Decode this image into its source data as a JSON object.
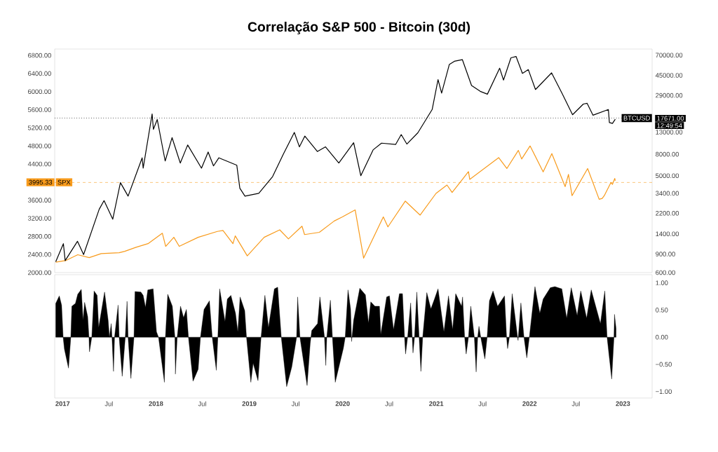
{
  "chart_data": [
    {
      "type": "line",
      "title": "Correlação S&P 500 - Bitcoin (30d)",
      "xlim": [
        "2016-12-01",
        "2023-04-25"
      ],
      "tick_labels": "y",
      "log": "y2",
      "ylim": [
        2000,
        6940
      ],
      "yticks": [
        {
          "value": 2000,
          "label": "2000.00"
        },
        {
          "value": 2400,
          "label": "2400.00"
        },
        {
          "value": 2800,
          "label": "2800.00"
        },
        {
          "value": 3200,
          "label": "3200.00"
        },
        {
          "value": 3600,
          "label": "3600.00"
        },
        {
          "value": 4400,
          "label": "4400.00"
        },
        {
          "value": 4800,
          "label": "4800.00"
        },
        {
          "value": 5200,
          "label": "5200.00"
        },
        {
          "value": 5600,
          "label": "5600.00"
        },
        {
          "value": 6000,
          "label": "6000.00"
        },
        {
          "value": 6400,
          "label": "6400.00"
        },
        {
          "value": 6800,
          "label": "6800.00"
        }
      ],
      "y2lim": [
        600,
        80000
      ],
      "y2ticks": [
        {
          "value": 600,
          "label": "600.00"
        },
        {
          "value": 900,
          "label": "900.00"
        },
        {
          "value": 1400,
          "label": "1400.00"
        },
        {
          "value": 2200,
          "label": "2200.00"
        },
        {
          "value": 3400,
          "label": "3400.00"
        },
        {
          "value": 5000,
          "label": "5000.00"
        },
        {
          "value": 8000,
          "label": "8000.00"
        },
        {
          "value": 13000,
          "label": "13000.00"
        },
        {
          "value": 29000,
          "label": "29000.00"
        },
        {
          "value": 45000,
          "label": "45000.00"
        },
        {
          "value": 70000,
          "label": "70000.00"
        }
      ],
      "series": [
        {
          "name": "SPX",
          "color": "#f89b1c",
          "axis": "y",
          "x": [
            "2016-12-05",
            "2017-01-15",
            "2017-03-01",
            "2017-04-15",
            "2017-06-01",
            "2017-08-10",
            "2017-09-01",
            "2017-10-15",
            "2017-12-01",
            "2018-01-26",
            "2018-02-08",
            "2018-03-12",
            "2018-04-02",
            "2018-06-15",
            "2018-08-29",
            "2018-09-20",
            "2018-10-29",
            "2018-11-07",
            "2018-12-24",
            "2019-02-28",
            "2019-04-30",
            "2019-06-03",
            "2019-07-26",
            "2019-08-05",
            "2019-10-02",
            "2019-11-29",
            "2019-12-31",
            "2020-02-19",
            "2020-03-23",
            "2020-06-08",
            "2020-06-26",
            "2020-09-02",
            "2020-10-30",
            "2020-12-31",
            "2021-02-12",
            "2021-03-04",
            "2021-05-07",
            "2021-05-12",
            "2021-09-02",
            "2021-10-04",
            "2021-11-18",
            "2021-12-01",
            "2022-01-03",
            "2022-02-23",
            "2022-03-29",
            "2022-05-20",
            "2022-06-02",
            "2022-06-16",
            "2022-08-16",
            "2022-09-30",
            "2022-10-12",
            "2022-10-20",
            "2022-11-15",
            "2022-11-21",
            "2022-11-30",
            "2022-12-02"
          ],
          "values": [
            2230,
            2270,
            2395,
            2330,
            2420,
            2440,
            2470,
            2560,
            2640,
            2870,
            2580,
            2780,
            2580,
            2780,
            2910,
            2930,
            2640,
            2810,
            2370,
            2780,
            2945,
            2745,
            3025,
            2840,
            2890,
            3140,
            3230,
            3385,
            2320,
            3230,
            3010,
            3580,
            3270,
            3750,
            3935,
            3770,
            4230,
            4060,
            4540,
            4300,
            4700,
            4510,
            4800,
            4225,
            4630,
            3900,
            4170,
            3700,
            4300,
            3620,
            3640,
            3700,
            3990,
            3950,
            4080,
            4030
          ]
        },
        {
          "name": "BTCUSD",
          "color": "#000000",
          "axis": "y2",
          "x": [
            "2016-12-05",
            "2017-01-04",
            "2017-01-11",
            "2017-02-28",
            "2017-03-24",
            "2017-05-24",
            "2017-06-12",
            "2017-07-16",
            "2017-08-15",
            "2017-09-14",
            "2017-11-08",
            "2017-11-12",
            "2017-12-17",
            "2017-12-22",
            "2018-01-06",
            "2018-02-06",
            "2018-03-05",
            "2018-04-06",
            "2018-05-05",
            "2018-06-28",
            "2018-07-24",
            "2018-08-14",
            "2018-09-04",
            "2018-11-13",
            "2018-11-25",
            "2018-12-15",
            "2019-02-07",
            "2019-04-02",
            "2019-05-14",
            "2019-06-26",
            "2019-07-16",
            "2019-08-06",
            "2019-09-24",
            "2019-10-26",
            "2019-12-17",
            "2020-02-13",
            "2020-03-12",
            "2020-04-29",
            "2020-06-01",
            "2020-07-26",
            "2020-08-17",
            "2020-09-08",
            "2020-10-21",
            "2020-12-16",
            "2021-01-08",
            "2021-01-22",
            "2021-02-21",
            "2021-03-13",
            "2021-04-13",
            "2021-05-19",
            "2021-06-22",
            "2021-07-20",
            "2021-09-06",
            "2021-09-21",
            "2021-10-20",
            "2021-11-09",
            "2021-12-04",
            "2021-12-27",
            "2022-01-24",
            "2022-03-28",
            "2022-05-09",
            "2022-06-18",
            "2022-07-30",
            "2022-08-14",
            "2022-09-06",
            "2022-11-05",
            "2022-11-09",
            "2022-11-21",
            "2022-12-02"
          ],
          "values": [
            760,
            1130,
            780,
            1190,
            890,
            2400,
            2900,
            1930,
            4300,
            3200,
            7400,
            5900,
            19300,
            13800,
            17100,
            6900,
            11500,
            6600,
            9800,
            5900,
            8400,
            6200,
            7400,
            6300,
            3800,
            3200,
            3400,
            4900,
            8000,
            12900,
            9400,
            11900,
            8500,
            9400,
            6600,
            10300,
            5000,
            8800,
            10200,
            9900,
            12300,
            10000,
            12800,
            21300,
            41000,
            30500,
            57000,
            61200,
            63500,
            36000,
            31700,
            29800,
            52600,
            40600,
            66000,
            68000,
            47000,
            51000,
            33000,
            47500,
            30000,
            19000,
            24000,
            24400,
            18800,
            21300,
            16000,
            15700,
            17200
          ]
        }
      ],
      "ref_lines": [
        {
          "axis": "y",
          "value": 3995.33,
          "label": "3995.33",
          "color": "#f89b1c",
          "line_style": "dashed"
        },
        {
          "axis": "y2",
          "value": 17671,
          "label": "17671.00",
          "color": "#000000",
          "line_style": "dotted"
        }
      ],
      "annotations": [
        "12:49:54"
      ]
    },
    {
      "type": "area",
      "color": "#000000",
      "xlim": [
        "2016-12-01",
        "2023-04-25"
      ],
      "xticks": [
        {
          "value": "2017",
          "label": "2017"
        },
        {
          "value": "2017-07",
          "label": "Jul"
        },
        {
          "value": "2018",
          "label": "2018"
        },
        {
          "value": "2018-07",
          "label": "Jul"
        },
        {
          "value": "2019",
          "label": "2019"
        },
        {
          "value": "2019-07",
          "label": "Jul"
        },
        {
          "value": "2020",
          "label": "2020"
        },
        {
          "value": "2020-07",
          "label": "Jul"
        },
        {
          "value": "2021",
          "label": "2021"
        },
        {
          "value": "2021-07",
          "label": "Jul"
        },
        {
          "value": "2022",
          "label": "2022"
        },
        {
          "value": "2022-07",
          "label": "Jul"
        },
        {
          "value": "2023",
          "label": "2023"
        }
      ],
      "ylim": [
        -1.12,
        1.15
      ],
      "yticks": [
        {
          "value": -1,
          "label": "−1.00"
        },
        {
          "value": -0.5,
          "label": "−0.50"
        },
        {
          "value": 0,
          "label": "0.00"
        },
        {
          "value": 0.5,
          "label": "0.50"
        },
        {
          "value": 1,
          "label": "1.00"
        }
      ],
      "x": [
        "2016-12-05",
        "2016-12-19",
        "2016-12-28",
        "2017-01-03",
        "2017-01-08",
        "2017-01-24",
        "2017-02-02",
        "2017-02-06",
        "2017-02-20",
        "2017-03-01",
        "2017-03-15",
        "2017-03-22",
        "2017-03-28",
        "2017-04-09",
        "2017-04-14",
        "2017-04-16",
        "2017-04-25",
        "2017-05-04",
        "2017-05-16",
        "2017-05-22",
        "2017-06-14",
        "2017-06-28",
        "2017-07-03",
        "2017-07-10",
        "2017-07-13",
        "2017-07-19",
        "2017-07-23",
        "2017-08-06",
        "2017-08-10",
        "2017-08-22",
        "2017-09-03",
        "2017-09-10",
        "2017-09-14",
        "2017-09-25",
        "2017-10-07",
        "2017-10-11",
        "2017-11-03",
        "2017-11-12",
        "2017-11-21",
        "2017-11-30",
        "2017-12-21",
        "2018-01-03",
        "2018-01-11",
        "2018-02-03",
        "2018-02-07",
        "2018-02-16",
        "2018-03-06",
        "2018-03-16",
        "2018-03-18",
        "2018-03-25",
        "2018-04-07",
        "2018-04-19",
        "2018-04-30",
        "2018-05-08",
        "2018-05-26",
        "2018-06-15",
        "2018-06-24",
        "2018-07-08",
        "2018-07-29",
        "2018-08-09",
        "2018-08-25",
        "2018-08-31",
        "2018-09-07",
        "2018-09-28",
        "2018-10-07",
        "2018-10-21",
        "2018-11-08",
        "2018-11-17",
        "2018-11-26",
        "2018-12-14",
        "2018-12-21",
        "2019-01-07",
        "2019-01-16",
        "2019-02-04",
        "2019-02-16",
        "2019-03-03",
        "2019-03-17",
        "2019-04-09",
        "2019-04-22",
        "2019-05-06",
        "2019-05-27",
        "2019-06-16",
        "2019-07-05",
        "2019-07-09",
        "2019-07-18",
        "2019-08-15",
        "2019-08-27",
        "2019-09-02",
        "2019-09-25",
        "2019-10-04",
        "2019-10-22",
        "2019-10-27",
        "2019-10-31",
        "2019-11-14",
        "2019-11-22",
        "2019-12-03",
        "2020-01-04",
        "2020-01-11",
        "2020-01-22",
        "2020-02-01",
        "2020-02-05",
        "2020-02-13",
        "2020-03-08",
        "2020-03-30",
        "2020-04-11",
        "2020-04-20",
        "2020-05-06",
        "2020-05-24",
        "2020-05-29",
        "2020-06-21",
        "2020-07-02",
        "2020-07-18",
        "2020-08-10",
        "2020-08-22",
        "2020-08-30",
        "2020-09-03",
        "2020-09-11",
        "2020-09-23",
        "2020-09-29",
        "2020-10-02",
        "2020-10-08",
        "2020-10-17",
        "2020-10-26",
        "2020-11-02",
        "2020-11-09",
        "2020-11-25",
        "2020-12-11",
        "2020-12-25",
        "2021-01-08",
        "2021-01-31",
        "2021-02-18",
        "2021-03-06",
        "2021-03-18",
        "2021-04-10",
        "2021-04-14",
        "2021-04-22",
        "2021-04-28",
        "2021-05-07",
        "2021-05-16",
        "2021-05-30",
        "2021-06-06",
        "2021-06-12",
        "2021-06-17",
        "2021-06-24",
        "2021-07-10",
        "2021-07-19",
        "2021-07-28",
        "2021-08-11",
        "2021-08-29",
        "2021-09-25",
        "2021-10-03",
        "2021-10-07",
        "2021-10-14",
        "2021-10-25",
        "2021-11-15",
        "2021-11-17",
        "2021-11-28",
        "2021-12-10",
        "2021-12-21",
        "2021-12-31",
        "2022-01-22",
        "2022-02-10",
        "2022-02-23",
        "2022-03-23",
        "2022-04-10",
        "2022-05-07",
        "2022-05-26",
        "2022-06-13",
        "2022-07-06",
        "2022-07-20",
        "2022-08-12",
        "2022-08-30",
        "2022-10-05",
        "2022-10-22",
        "2022-10-31",
        "2022-11-18",
        "2022-11-27",
        "2022-11-29",
        "2022-12-05"
      ],
      "values": [
        0.62,
        0.76,
        0.59,
        0,
        -0.22,
        -0.57,
        0,
        0.57,
        0.62,
        0.79,
        0.88,
        0.31,
        0.64,
        0.38,
        0,
        -0.27,
        0,
        0.85,
        0.77,
        0.18,
        0.83,
        0.31,
        0,
        0.25,
        0,
        -0.63,
        0,
        0.59,
        0,
        -0.72,
        0,
        0.66,
        0,
        -0.76,
        0,
        0.84,
        0.83,
        0.77,
        0.55,
        0.87,
        0.89,
        0.1,
        0,
        -0.83,
        0,
        0.79,
        0.57,
        0,
        -0.68,
        0,
        0.57,
        0.36,
        0.51,
        0,
        -0.81,
        -0.59,
        0,
        0.51,
        0.67,
        0,
        -0.61,
        0,
        0.89,
        0.29,
        0.7,
        0.77,
        0.44,
        0.1,
        0.74,
        0.49,
        0,
        -0.83,
        -0.48,
        -0.8,
        0,
        0.77,
        0.18,
        0.89,
        0.92,
        0,
        -0.91,
        -0.55,
        0,
        0.74,
        0,
        -0.89,
        -0.12,
        0.12,
        0.25,
        0.74,
        0,
        -0.52,
        0,
        0.68,
        0,
        -0.83,
        -0.2,
        0,
        0.87,
        0.52,
        -0.08,
        0.31,
        0.9,
        0.78,
        0.26,
        0.65,
        0.57,
        0.57,
        0.05,
        0.74,
        0.76,
        0.14,
        0.8,
        0.8,
        0,
        -0.31,
        0,
        0.63,
        0,
        -0.29,
        0,
        0.83,
        0,
        -0.63,
        0,
        0.82,
        0.52,
        0.7,
        0.89,
        0.1,
        0.76,
        0.14,
        0.8,
        0.57,
        0.74,
        0,
        -0.31,
        0,
        0.57,
        0,
        -0.64,
        0,
        0.2,
        0,
        -0.4,
        0,
        0.67,
        0.85,
        0.57,
        0.76,
        0,
        -0.21,
        0,
        0.8,
        0,
        -0.06,
        0.63,
        0,
        -0.38,
        0,
        0.93,
        0.44,
        0.7,
        0.91,
        0.93,
        0.89,
        0.35,
        0.91,
        0.4,
        0.85,
        0.35,
        0.87,
        0.25,
        0.85,
        0,
        -0.77,
        0,
        0.42,
        0.16
      ]
    }
  ]
}
